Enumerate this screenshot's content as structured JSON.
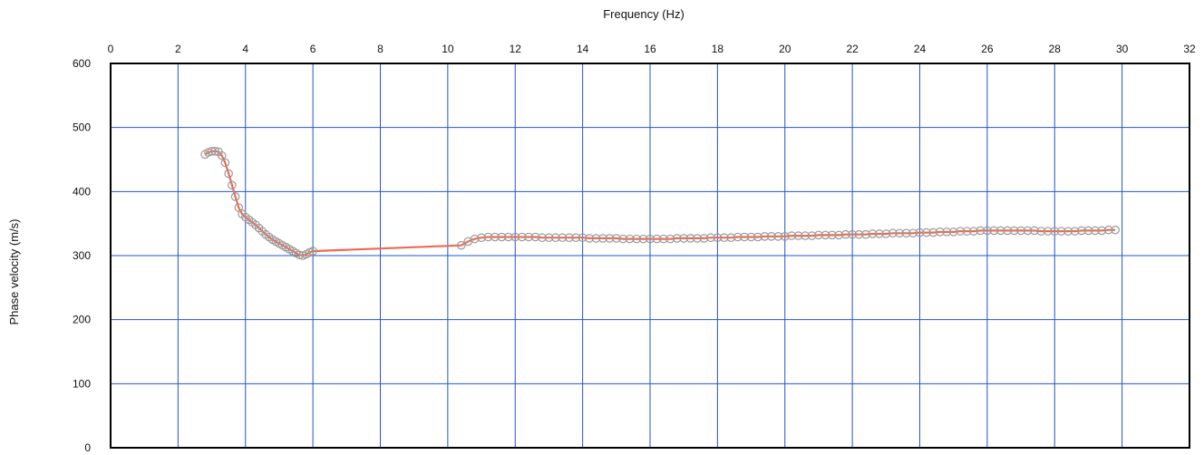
{
  "chart_data": {
    "type": "scatter",
    "title": "",
    "xlabel": "Frequency (Hz)",
    "ylabel": "Phase velocity (m/s)",
    "xlim": [
      0,
      32
    ],
    "ylim": [
      0,
      600
    ],
    "x_ticks": [
      0,
      2,
      4,
      6,
      8,
      10,
      12,
      14,
      16,
      18,
      20,
      22,
      24,
      26,
      28,
      30,
      32
    ],
    "y_ticks": [
      0,
      100,
      200,
      300,
      400,
      500,
      600
    ],
    "x_axis_position": "top",
    "grid": true,
    "grid_color": "#2255cc",
    "line_color": "#f06a4f",
    "marker_color": "#999999",
    "series": [
      {
        "x": [
          2.8,
          2.9,
          3.0,
          3.1,
          3.2,
          3.3,
          3.4,
          3.5,
          3.6,
          3.7,
          3.8,
          3.9,
          4.0,
          4.1,
          4.2,
          4.3,
          4.4,
          4.5,
          4.6,
          4.7,
          4.8,
          4.9,
          5.0,
          5.1,
          5.2,
          5.3,
          5.4,
          5.5,
          5.6,
          5.7,
          5.8,
          5.9,
          6.0,
          10.4,
          10.6,
          10.8,
          11.0,
          11.2,
          11.4,
          11.6,
          11.8,
          12.0,
          12.2,
          12.4,
          12.6,
          12.8,
          13.0,
          13.2,
          13.4,
          13.6,
          13.8,
          14.0,
          14.2,
          14.4,
          14.6,
          14.8,
          15.0,
          15.2,
          15.4,
          15.6,
          15.8,
          16.0,
          16.2,
          16.4,
          16.6,
          16.8,
          17.0,
          17.2,
          17.4,
          17.6,
          17.8,
          18.0,
          18.2,
          18.4,
          18.6,
          18.8,
          19.0,
          19.2,
          19.4,
          19.6,
          19.8,
          20.0,
          20.2,
          20.4,
          20.6,
          20.8,
          21.0,
          21.2,
          21.4,
          21.6,
          21.8,
          22.0,
          22.2,
          22.4,
          22.6,
          22.8,
          23.0,
          23.2,
          23.4,
          23.6,
          23.8,
          24.0,
          24.2,
          24.4,
          24.6,
          24.8,
          25.0,
          25.2,
          25.4,
          25.6,
          25.8,
          26.0,
          26.2,
          26.4,
          26.6,
          26.8,
          27.0,
          27.2,
          27.4,
          27.6,
          27.8,
          28.0,
          28.2,
          28.4,
          28.6,
          28.8,
          29.0,
          29.2,
          29.4,
          29.6,
          29.8
        ],
        "y": [
          458,
          461,
          463,
          463,
          462,
          456,
          445,
          428,
          410,
          392,
          375,
          365,
          360,
          356,
          352,
          348,
          343,
          338,
          333,
          329,
          325,
          322,
          319,
          316,
          313,
          310,
          307,
          304,
          301,
          300,
          302,
          305,
          307,
          316,
          322,
          326,
          328,
          329,
          329,
          329,
          329,
          329,
          329,
          329,
          329,
          328,
          328,
          328,
          328,
          328,
          328,
          328,
          327,
          327,
          327,
          327,
          327,
          326,
          326,
          326,
          326,
          326,
          326,
          326,
          326,
          327,
          327,
          327,
          327,
          327,
          328,
          328,
          328,
          328,
          329,
          329,
          329,
          329,
          330,
          330,
          330,
          330,
          331,
          331,
          331,
          331,
          332,
          332,
          332,
          332,
          333,
          333,
          333,
          333,
          334,
          334,
          334,
          335,
          335,
          335,
          335,
          336,
          336,
          336,
          337,
          337,
          337,
          338,
          338,
          338,
          339,
          339,
          339,
          339,
          339,
          339,
          339,
          339,
          339,
          338,
          338,
          338,
          338,
          338,
          338,
          339,
          339,
          339,
          339,
          340,
          340
        ]
      }
    ]
  }
}
